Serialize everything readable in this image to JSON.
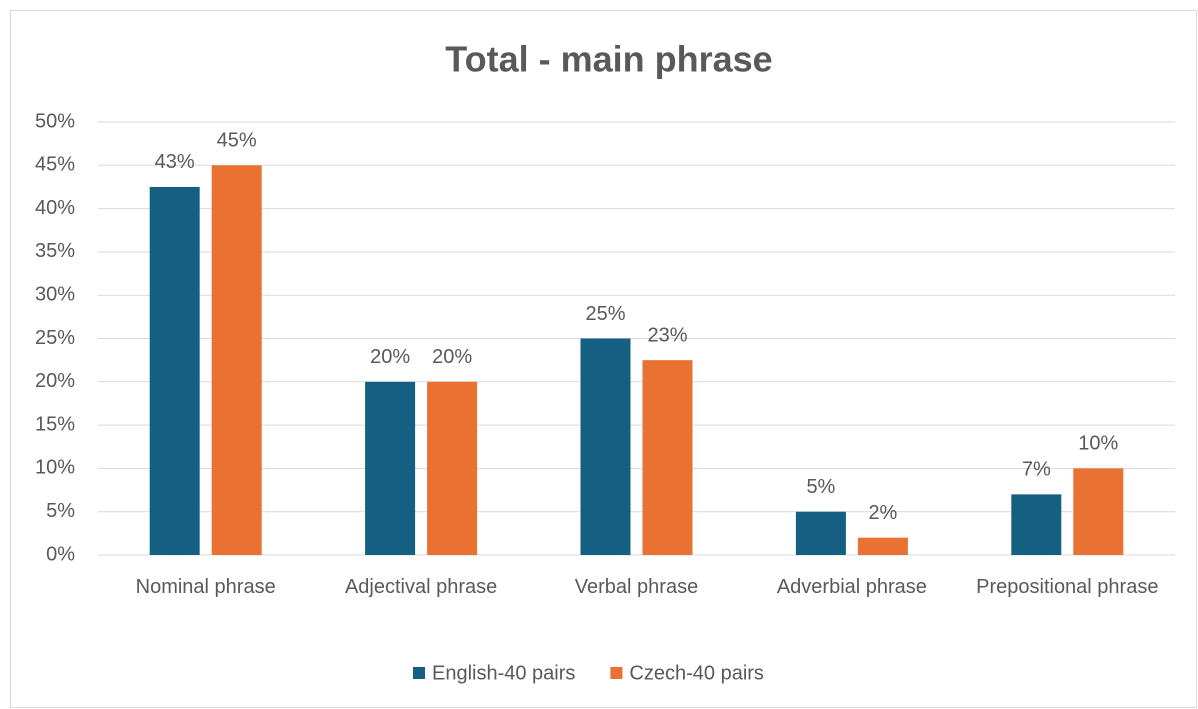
{
  "chart_data": {
    "type": "bar",
    "title": "Total - main phrase",
    "categories": [
      "Nominal phrase",
      "Adjectival phrase",
      "Verbal phrase",
      "Adverbial phrase",
      "Prepositional phrase"
    ],
    "series": [
      {
        "name": "English-40 pairs",
        "color": "#156082",
        "values": [
          42.5,
          20,
          25,
          5,
          7
        ],
        "value_labels": [
          "43%",
          "20%",
          "25%",
          "5%",
          "7%"
        ]
      },
      {
        "name": "Czech-40 pairs",
        "color": "#e97132",
        "values": [
          45,
          20,
          22.5,
          2,
          10
        ],
        "value_labels": [
          "45%",
          "20%",
          "23%",
          "2%",
          "10%"
        ]
      }
    ],
    "ylim": [
      0,
      50
    ],
    "yticks": [
      {
        "value": 0,
        "label": "0%"
      },
      {
        "value": 5,
        "label": "5%"
      },
      {
        "value": 10,
        "label": "10%"
      },
      {
        "value": 15,
        "label": "15%"
      },
      {
        "value": 20,
        "label": "20%"
      },
      {
        "value": 25,
        "label": "25%"
      },
      {
        "value": 30,
        "label": "30%"
      },
      {
        "value": 35,
        "label": "35%"
      },
      {
        "value": 40,
        "label": "40%"
      },
      {
        "value": 45,
        "label": "45%"
      },
      {
        "value": 50,
        "label": "50%"
      }
    ],
    "grid": true,
    "legend": "bottom"
  }
}
